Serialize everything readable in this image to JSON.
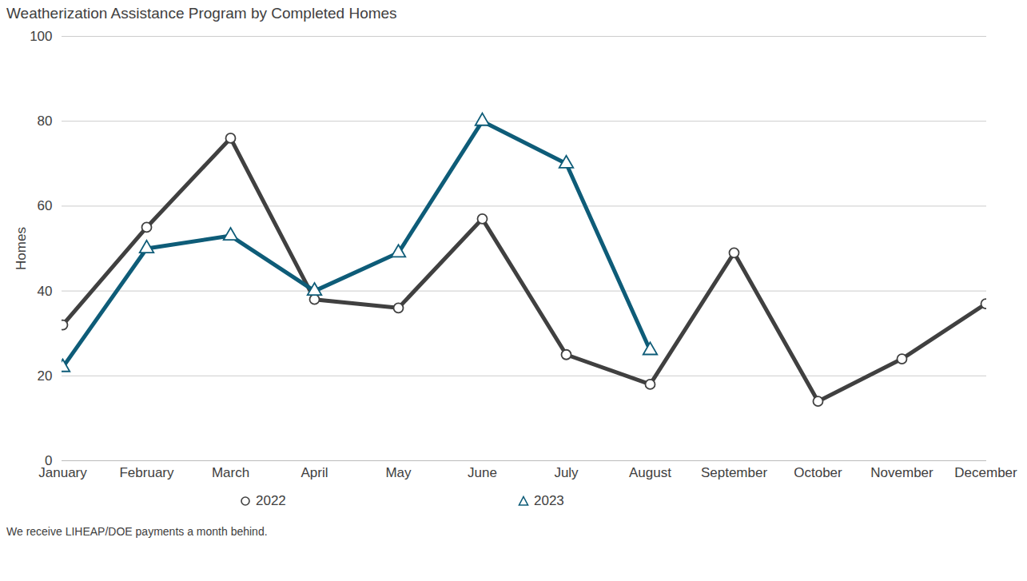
{
  "chart_data": {
    "type": "line",
    "title": "Weatherization Assistance Program by Completed Homes",
    "y_label": "Homes",
    "caption": "We receive LIHEAP/DOE payments a month behind.",
    "categories": [
      "January",
      "February",
      "March",
      "April",
      "May",
      "June",
      "July",
      "August",
      "September",
      "October",
      "November",
      "December"
    ],
    "series": [
      {
        "name": "2022",
        "color": "#404040",
        "marker": "circle",
        "values": [
          32,
          55,
          76,
          38,
          36,
          57,
          25,
          18,
          49,
          14,
          24,
          37
        ]
      },
      {
        "name": "2023",
        "color": "#0e5c78",
        "marker": "triangle",
        "values": [
          22,
          50,
          53,
          40,
          49,
          80,
          70,
          26,
          null,
          null,
          null,
          null
        ]
      }
    ],
    "ylim": [
      0,
      100
    ],
    "yticks": [
      0,
      20,
      40,
      60,
      80,
      100
    ],
    "grid": true,
    "legend": "bottom"
  }
}
